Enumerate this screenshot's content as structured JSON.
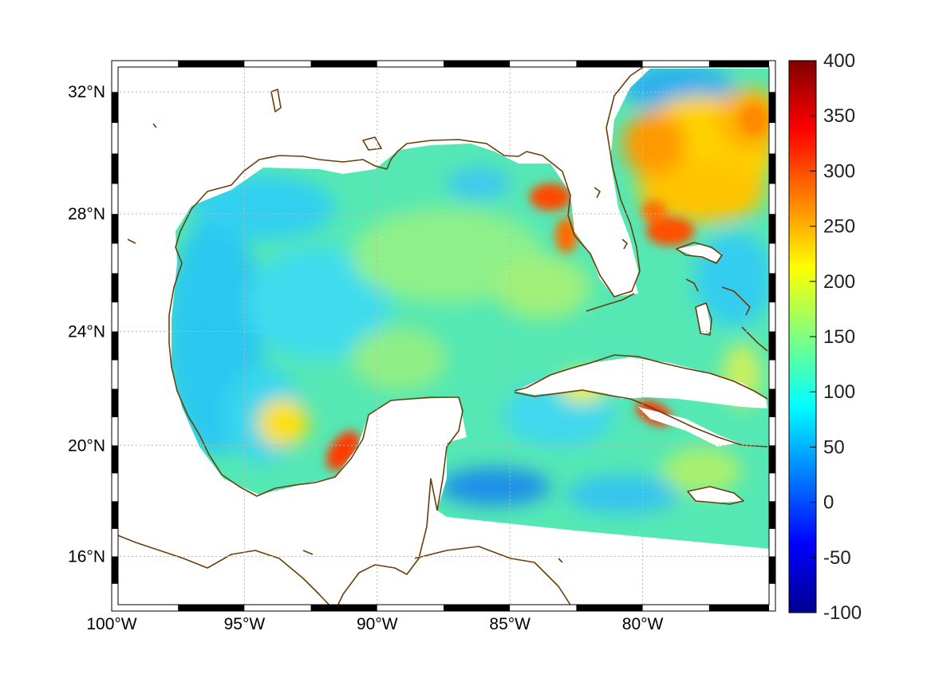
{
  "map": {
    "projection": "mercator",
    "lon_range": [
      -100,
      -75
    ],
    "lat_range": [
      14,
      33
    ],
    "meridians": [
      -95,
      -90,
      -85,
      -80
    ],
    "parallels": [
      16,
      20,
      24,
      28,
      32
    ],
    "lon_tick_labels": [
      "100°W",
      "95°W",
      "90°W",
      "85°W",
      "80°W"
    ],
    "lat_tick_labels": [
      "16°N",
      "20°N",
      "24°N",
      "28°N",
      "32°N"
    ],
    "grid": true,
    "frame_style": "black-white striped border",
    "coastline_color": "#6b3d0a"
  },
  "colorbar": {
    "colormap": "jet",
    "range": [
      -100,
      400
    ],
    "tick_labels": [
      "400",
      "350",
      "300",
      "250",
      "200",
      "150",
      "100",
      "50",
      "0",
      "-50",
      "-100"
    ],
    "placement": "right"
  },
  "field": {
    "typical_value": "about 80–150 over most of the Gulf of Mexico and Caribbean",
    "highs": [
      {
        "where": "Atlantic east of Florida and near the Bahamas",
        "value": 260
      },
      {
        "where": "west Florida shelf near 28.5°N 83.5°W",
        "value": 290
      },
      {
        "where": "Bay of Campeche near 19.5°N 91.5°W",
        "value": 290
      },
      {
        "where": "south of Cuba near 21°N 79.5°W",
        "value": 280
      },
      {
        "where": "Bay of Campeche near 21°N 93°W",
        "value": 220
      }
    ],
    "lows": [
      {
        "where": "Caribbean near 18°N 85°W",
        "value": 40
      },
      {
        "where": "off Georgia near 31.5°N 80°W",
        "value": 60
      }
    ]
  }
}
